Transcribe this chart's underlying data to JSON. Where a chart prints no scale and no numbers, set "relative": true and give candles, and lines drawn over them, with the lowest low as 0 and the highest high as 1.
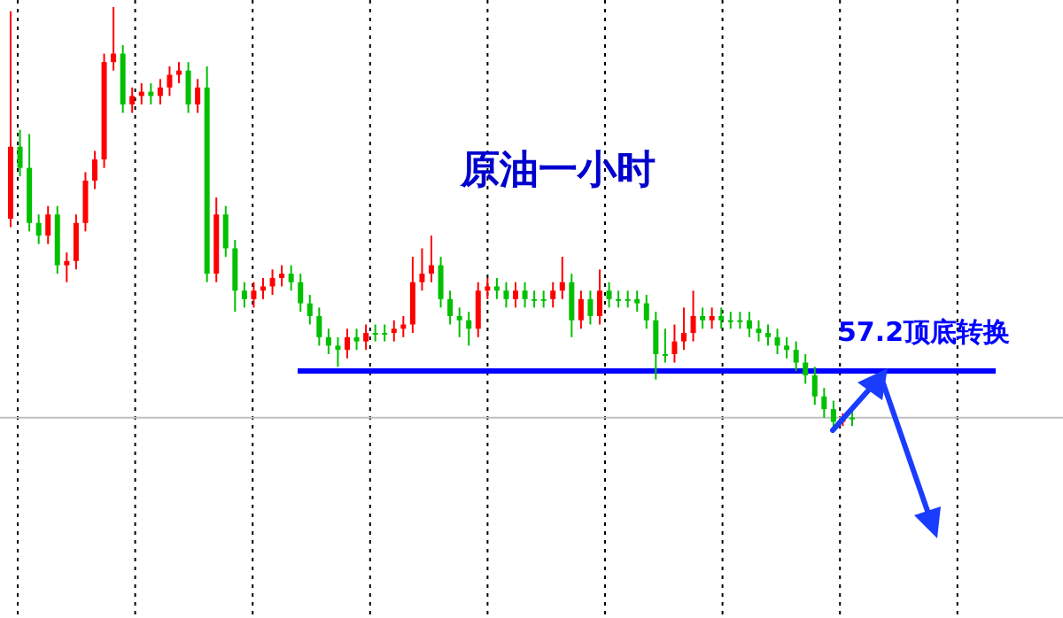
{
  "chart_data": {
    "type": "candlestick",
    "title": "原油一小时",
    "relative": true,
    "grid": "x",
    "categories": [
      null,
      null,
      null,
      null,
      null,
      null,
      null,
      null,
      null,
      null,
      null,
      null,
      null,
      null,
      null,
      null,
      null,
      null,
      null,
      null,
      null,
      null,
      null,
      null,
      null,
      null,
      null,
      null,
      null,
      null,
      null,
      null,
      null,
      null,
      null,
      null,
      null,
      null,
      null,
      null,
      null,
      null,
      null,
      null,
      null,
      null,
      null,
      null,
      null,
      null,
      null,
      null,
      null,
      null,
      null,
      null,
      null,
      null,
      null,
      null,
      null,
      null,
      null,
      null,
      null,
      null,
      null,
      null,
      null,
      null,
      null,
      null,
      null,
      null,
      null,
      null,
      null,
      null,
      null,
      null,
      null,
      null,
      null,
      null,
      null,
      null,
      null,
      null,
      null,
      null,
      null
    ],
    "ohlc": [
      [
        0.5,
        0.99,
        0.48,
        0.67
      ],
      [
        0.67,
        0.71,
        0.6,
        0.62
      ],
      [
        0.62,
        0.7,
        0.47,
        0.49
      ],
      [
        0.49,
        0.51,
        0.44,
        0.46
      ],
      [
        0.46,
        0.53,
        0.44,
        0.51
      ],
      [
        0.51,
        0.53,
        0.37,
        0.39
      ],
      [
        0.39,
        0.42,
        0.35,
        0.4
      ],
      [
        0.4,
        0.51,
        0.38,
        0.49
      ],
      [
        0.49,
        0.61,
        0.47,
        0.59
      ],
      [
        0.59,
        0.66,
        0.57,
        0.64
      ],
      [
        0.64,
        0.89,
        0.62,
        0.87
      ],
      [
        0.87,
        1.0,
        0.85,
        0.89
      ],
      [
        0.89,
        0.91,
        0.75,
        0.77
      ],
      [
        0.77,
        0.81,
        0.75,
        0.79
      ],
      [
        0.79,
        0.82,
        0.77,
        0.8
      ],
      [
        0.8,
        0.82,
        0.77,
        0.79
      ],
      [
        0.79,
        0.83,
        0.77,
        0.81
      ],
      [
        0.81,
        0.86,
        0.79,
        0.84
      ],
      [
        0.84,
        0.87,
        0.82,
        0.85
      ],
      [
        0.85,
        0.87,
        0.75,
        0.77
      ],
      [
        0.77,
        0.83,
        0.75,
        0.81
      ],
      [
        0.81,
        0.86,
        0.35,
        0.37
      ],
      [
        0.37,
        0.55,
        0.35,
        0.51
      ],
      [
        0.51,
        0.53,
        0.41,
        0.43
      ],
      [
        0.43,
        0.45,
        0.28,
        0.33
      ],
      [
        0.33,
        0.35,
        0.29,
        0.31
      ],
      [
        0.31,
        0.35,
        0.29,
        0.33
      ],
      [
        0.33,
        0.36,
        0.31,
        0.34
      ],
      [
        0.34,
        0.38,
        0.32,
        0.36
      ],
      [
        0.36,
        0.39,
        0.34,
        0.37
      ],
      [
        0.37,
        0.39,
        0.33,
        0.35
      ],
      [
        0.35,
        0.37,
        0.28,
        0.3
      ],
      [
        0.3,
        0.32,
        0.25,
        0.27
      ],
      [
        0.27,
        0.29,
        0.2,
        0.22
      ],
      [
        0.22,
        0.24,
        0.18,
        0.2
      ],
      [
        0.2,
        0.22,
        0.15,
        0.19
      ],
      [
        0.19,
        0.24,
        0.17,
        0.22
      ],
      [
        0.22,
        0.24,
        0.19,
        0.21
      ],
      [
        0.21,
        0.25,
        0.19,
        0.23
      ],
      [
        0.23,
        0.25,
        0.21,
        0.23
      ],
      [
        0.23,
        0.25,
        0.21,
        0.23
      ],
      [
        0.23,
        0.26,
        0.21,
        0.24
      ],
      [
        0.24,
        0.27,
        0.22,
        0.25
      ],
      [
        0.25,
        0.41,
        0.23,
        0.35
      ],
      [
        0.35,
        0.43,
        0.33,
        0.37
      ],
      [
        0.37,
        0.46,
        0.35,
        0.39
      ],
      [
        0.39,
        0.41,
        0.29,
        0.31
      ],
      [
        0.31,
        0.33,
        0.25,
        0.27
      ],
      [
        0.27,
        0.29,
        0.22,
        0.26
      ],
      [
        0.26,
        0.28,
        0.2,
        0.24
      ],
      [
        0.24,
        0.35,
        0.22,
        0.33
      ],
      [
        0.33,
        0.36,
        0.31,
        0.34
      ],
      [
        0.34,
        0.36,
        0.31,
        0.33
      ],
      [
        0.33,
        0.35,
        0.29,
        0.31
      ],
      [
        0.31,
        0.35,
        0.29,
        0.33
      ],
      [
        0.33,
        0.35,
        0.29,
        0.31
      ],
      [
        0.31,
        0.33,
        0.29,
        0.31
      ],
      [
        0.31,
        0.33,
        0.29,
        0.31
      ],
      [
        0.31,
        0.35,
        0.29,
        0.33
      ],
      [
        0.33,
        0.41,
        0.31,
        0.35
      ],
      [
        0.35,
        0.37,
        0.22,
        0.26
      ],
      [
        0.26,
        0.33,
        0.24,
        0.31
      ],
      [
        0.31,
        0.33,
        0.25,
        0.27
      ],
      [
        0.27,
        0.38,
        0.25,
        0.33
      ],
      [
        0.33,
        0.35,
        0.29,
        0.31
      ],
      [
        0.31,
        0.33,
        0.29,
        0.31
      ],
      [
        0.31,
        0.33,
        0.29,
        0.31
      ],
      [
        0.31,
        0.33,
        0.28,
        0.3
      ],
      [
        0.3,
        0.32,
        0.24,
        0.26
      ],
      [
        0.26,
        0.28,
        0.12,
        0.18
      ],
      [
        0.18,
        0.24,
        0.16,
        0.18
      ],
      [
        0.18,
        0.25,
        0.16,
        0.21
      ],
      [
        0.21,
        0.29,
        0.19,
        0.23
      ],
      [
        0.23,
        0.33,
        0.21,
        0.27
      ],
      [
        0.27,
        0.29,
        0.24,
        0.26
      ],
      [
        0.26,
        0.29,
        0.24,
        0.27
      ],
      [
        0.27,
        0.29,
        0.24,
        0.26
      ],
      [
        0.26,
        0.28,
        0.24,
        0.26
      ],
      [
        0.26,
        0.28,
        0.24,
        0.26
      ],
      [
        0.26,
        0.28,
        0.22,
        0.24
      ],
      [
        0.24,
        0.26,
        0.21,
        0.23
      ],
      [
        0.23,
        0.25,
        0.2,
        0.22
      ],
      [
        0.22,
        0.24,
        0.18,
        0.2
      ],
      [
        0.2,
        0.22,
        0.17,
        0.19
      ],
      [
        0.19,
        0.21,
        0.14,
        0.16
      ],
      [
        0.16,
        0.18,
        0.11,
        0.13
      ],
      [
        0.13,
        0.15,
        0.06,
        0.08
      ],
      [
        0.08,
        0.1,
        0.03,
        0.05
      ],
      [
        0.05,
        0.07,
        0.0,
        0.02
      ],
      [
        0.02,
        0.04,
        0.01,
        0.03
      ],
      [
        0.03,
        0.05,
        0.01,
        0.03
      ]
    ],
    "colors": [
      "#ff0000",
      "#00c000",
      "#00c000",
      "#00c000",
      "#ff0000",
      "#00c000",
      "#ff0000",
      "#ff0000",
      "#ff0000",
      "#ff0000",
      "#ff0000",
      "#ff0000",
      "#00c000",
      "#ff0000",
      "#ff0000",
      "#00c000",
      "#ff0000",
      "#ff0000",
      "#ff0000",
      "#00c000",
      "#ff0000",
      "#00c000",
      "#ff0000",
      "#00c000",
      "#00c000",
      "#00c000",
      "#ff0000",
      "#ff0000",
      "#ff0000",
      "#ff0000",
      "#00c000",
      "#00c000",
      "#00c000",
      "#00c000",
      "#00c000",
      "#00c000",
      "#ff0000",
      "#00c000",
      "#ff0000",
      "#00c000",
      "#00c000",
      "#ff0000",
      "#ff0000",
      "#ff0000",
      "#ff0000",
      "#ff0000",
      "#00c000",
      "#00c000",
      "#00c000",
      "#00c000",
      "#ff0000",
      "#ff0000",
      "#00c000",
      "#00c000",
      "#ff0000",
      "#00c000",
      "#00c000",
      "#00c000",
      "#ff0000",
      "#ff0000",
      "#00c000",
      "#ff0000",
      "#00c000",
      "#ff0000",
      "#00c000",
      "#00c000",
      "#00c000",
      "#00c000",
      "#00c000",
      "#00c000",
      "#00c000",
      "#ff0000",
      "#ff0000",
      "#ff0000",
      "#00c000",
      "#ff0000",
      "#00c000",
      "#00c000",
      "#00c000",
      "#00c000",
      "#00c000",
      "#00c000",
      "#00c000",
      "#00c000",
      "#00c000",
      "#00c000",
      "#00c000",
      "#00c000",
      "#00c000",
      "#ff0000",
      "#00c000"
    ],
    "ref_lines": [
      {
        "axis": "y",
        "value": 0.14,
        "label": "57.2顶底转换",
        "color": "#0000ff"
      },
      {
        "axis": "y",
        "value": 0.03,
        "color": "#c0c0c0"
      }
    ]
  }
}
